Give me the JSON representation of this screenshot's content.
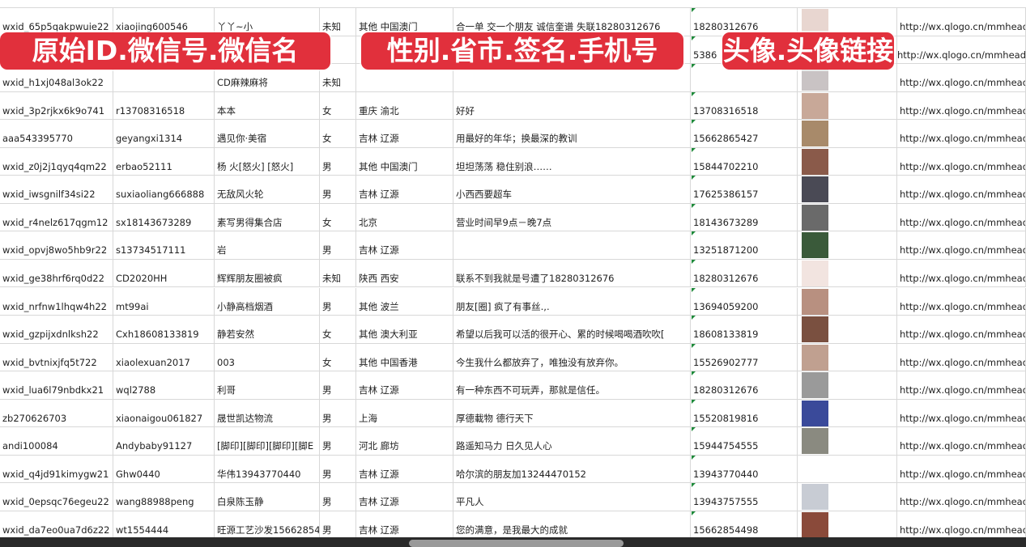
{
  "overlay_labels": [
    "原始ID.微信号.微信名",
    "性别.省市.签名.手机号",
    "头像.头像链接"
  ],
  "colors": {
    "label_bg": "#e1303c",
    "grid": "#d8d8d8",
    "marker": "#1f8a3b"
  },
  "rows": [
    {
      "id": "wxid_65p5qakpwuie22",
      "wechat": "xiaojing600546",
      "name": "丫丫~小",
      "gender": "未知",
      "region": "其他 中国澳门",
      "signature": "合一单 交一个朋友 诚信奎谱 失联18280312676",
      "phone": "18280312676",
      "avatar_color": "#e8d6d0",
      "link": "http://wx.qlogo.cn/mmhead"
    },
    {
      "id": "",
      "wechat": "",
      "name": "",
      "gender": "",
      "region": "",
      "signature": "",
      "phone": "5386",
      "avatar_color": "#6b7db0",
      "link": "http://wx.qlogo.cn/mmhead"
    },
    {
      "id": "wxid_h1xj048al3ok22",
      "wechat": "",
      "name": "CD麻辣麻将",
      "gender": "未知",
      "region": "",
      "signature": "",
      "phone": "",
      "avatar_color": "#c9c3c4",
      "link": "http://wx.qlogo.cn/mmhead"
    },
    {
      "id": "wxid_3p2rjkx6k9o741",
      "wechat": "r13708316518",
      "name": "本本",
      "gender": "女",
      "region": "重庆 渝北",
      "signature": "好好",
      "phone": "13708316518",
      "avatar_color": "#c8a898",
      "link": "http://wx.qlogo.cn/mmhead"
    },
    {
      "id": "aaa543395770",
      "wechat": "geyangxi1314",
      "name": "遇见你·美宿",
      "gender": "女",
      "region": "吉林 辽源",
      "signature": "用最好的年华；换最深的教训",
      "phone": "15662865427",
      "avatar_color": "#a88a6a",
      "link": "http://wx.qlogo.cn/mmhead"
    },
    {
      "id": "wxid_z0j2j1qyq4qm22",
      "wechat": "erbao52111",
      "name": "杨 火[怒火] [怒火]",
      "gender": "男",
      "region": "其他 中国澳门",
      "signature": "坦坦荡荡 稳住别浪……",
      "phone": "15844702210",
      "avatar_color": "#8a5a4a",
      "link": "http://wx.qlogo.cn/mmhead"
    },
    {
      "id": "wxid_iwsgnilf34si22",
      "wechat": "suxiaoliang666888",
      "name": "无敌风火轮",
      "gender": "男",
      "region": "吉林 辽源",
      "signature": "小西西要超车",
      "phone": "17625386157",
      "avatar_color": "#4a4a55",
      "link": "http://wx.qlogo.cn/mmhead"
    },
    {
      "id": "wxid_r4nelz617qgm12",
      "wechat": "sx18143673289",
      "name": "素写男得集合店",
      "gender": "女",
      "region": "北京",
      "signature": "营业时间早9点－晚7点",
      "phone": "18143673289",
      "avatar_color": "#6a6a6a",
      "link": "http://wx.qlogo.cn/mmhead"
    },
    {
      "id": "wxid_opvj8wo5hb9r22",
      "wechat": "s13734517111",
      "name": "岩",
      "gender": "男",
      "region": "吉林 辽源",
      "signature": "",
      "phone": "13251871200",
      "avatar_color": "#3a5a3a",
      "link": "http://wx.qlogo.cn/mmhead"
    },
    {
      "id": "wxid_ge38hrf6rq0d22",
      "wechat": "CD2020HH",
      "name": "辉辉朋友圈被疯",
      "gender": "未知",
      "region": "陕西 西安",
      "signature": "联系不到我就是号遭了18280312676",
      "phone": "18280312676",
      "avatar_color": "#f2e4e0",
      "link": "http://wx.qlogo.cn/mmhead"
    },
    {
      "id": "wxid_nrfnw1lhqw4h22",
      "wechat": "mt99ai",
      "name": "小静高档烟酒",
      "gender": "男",
      "region": "其他 波兰",
      "signature": "朋友[圈] 疯了有事丝.,.",
      "phone": "13694059200",
      "avatar_color": "#b89080",
      "link": "http://wx.qlogo.cn/mmhead"
    },
    {
      "id": "wxid_gzpijxdnlksh22",
      "wechat": "Cxh18608133819",
      "name": "静若安然",
      "gender": "女",
      "region": "其他 澳大利亚",
      "signature": "希望以后我可以活的很开心、累的时候喝喝酒吹吹[",
      "phone": "18608133819",
      "avatar_color": "#7a5040",
      "link": "http://wx.qlogo.cn/mmhead"
    },
    {
      "id": "wxid_bvtnixjfq5t722",
      "wechat": "xiaolexuan2017",
      "name": "003",
      "gender": "女",
      "region": "其他 中国香港",
      "signature": "今生我什么都放弃了，唯独没有放弃你。",
      "phone": "15526902777",
      "avatar_color": "#c0a090",
      "link": "http://wx.qlogo.cn/mmhead"
    },
    {
      "id": "wxid_lua6l79nbdkx21",
      "wechat": "wql2788",
      "name": "利哥",
      "gender": "男",
      "region": "吉林 辽源",
      "signature": "有一种东西不可玩弄，那就是信任。",
      "phone": "18280312676",
      "avatar_color": "#9a9a9a",
      "link": "http://wx.qlogo.cn/mmhead"
    },
    {
      "id": "zb270626703",
      "wechat": "xiaonaigou061827",
      "name": "晟世凯达物流",
      "gender": "男",
      "region": "上海",
      "signature": "厚德載物 德行天下",
      "phone": "15520819816",
      "avatar_color": "#3a4a9a",
      "link": "http://wx.qlogo.cn/mmhead"
    },
    {
      "id": "andi100084",
      "wechat": "Andybaby91127",
      "name": "[脚印][脚印][脚印][脚E",
      "gender": "男",
      "region": "河北 廊坊",
      "signature": "路遥知马力 日久见人心",
      "phone": "15944754555",
      "avatar_color": "#8a8a80",
      "link": "http://wx.qlogo.cn/mmhead"
    },
    {
      "id": "wxid_q4jd91kimygw21",
      "wechat": "Ghw0440",
      "name": "华伟13943770440",
      "gender": "男",
      "region": "吉林 辽源",
      "signature": "哈尔滨的朋友加13244470152",
      "phone": "13943770440",
      "avatar_color": "#ffffff",
      "link": "http://wx.qlogo.cn/mmhead"
    },
    {
      "id": "wxid_0epsqc76egeu22",
      "wechat": "wang88988peng",
      "name": "白泉陈玉静",
      "gender": "男",
      "region": "吉林 辽源",
      "signature": "平凡人",
      "phone": "13943757555",
      "avatar_color": "#c8ccd4",
      "link": "http://wx.qlogo.cn/mmhead"
    },
    {
      "id": "wxid_da7eo0ua7d6z22",
      "wechat": "wt1554444",
      "name": "旺源工艺沙发15662854",
      "gender": "男",
      "region": "吉林 辽源",
      "signature": "您的满意，是我最大的成就",
      "phone": "15662854498",
      "avatar_color": "#8a4a3a",
      "link": "http://wx.qlogo.cn/mmhead"
    }
  ]
}
